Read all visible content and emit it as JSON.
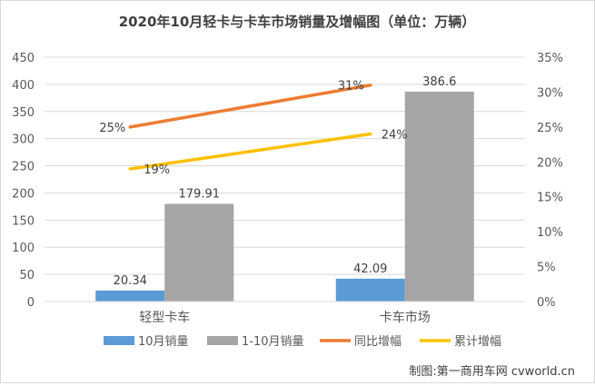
{
  "chart_data": {
    "type": "bar",
    "title": "2020年10月轻卡与卡车市场销量及增幅图（单位：万辆）",
    "categories": [
      "轻型卡车",
      "卡车市场"
    ],
    "bar_series": [
      {
        "name": "10月销量",
        "values": [
          20.34,
          42.09
        ],
        "labels": [
          "20.34",
          "42.09"
        ],
        "color": "#5b9bd5"
      },
      {
        "name": "1-10月销量",
        "values": [
          179.91,
          386.6
        ],
        "labels": [
          "179.91",
          "386.6"
        ],
        "color": "#a5a5a5"
      }
    ],
    "line_series": [
      {
        "name": "同比增幅",
        "values": [
          25,
          31
        ],
        "labels": [
          "25%",
          "31%"
        ],
        "color": "#ed7d31"
      },
      {
        "name": "累计增幅",
        "values": [
          19,
          24
        ],
        "labels": [
          "19%",
          "24%"
        ],
        "color": "#ffc000"
      }
    ],
    "y_left": {
      "min": 0,
      "max": 450,
      "step": 50,
      "ticks": [
        "0",
        "50",
        "100",
        "150",
        "200",
        "250",
        "300",
        "350",
        "400",
        "450"
      ]
    },
    "y_right": {
      "min": 0,
      "max": 35,
      "step": 5,
      "ticks": [
        "0%",
        "5%",
        "10%",
        "15%",
        "20%",
        "25%",
        "30%",
        "35%"
      ]
    },
    "grid": true,
    "legend_position": "bottom",
    "legend": [
      "10月销量",
      "1-10月销量",
      "同比增幅",
      "累计增幅"
    ]
  },
  "footer": {
    "source": "制图:第一商用车网 cvworld.cn"
  },
  "colors": {
    "grid": "#d9d9d9",
    "axis_text": "#595959",
    "title": "#404040"
  }
}
